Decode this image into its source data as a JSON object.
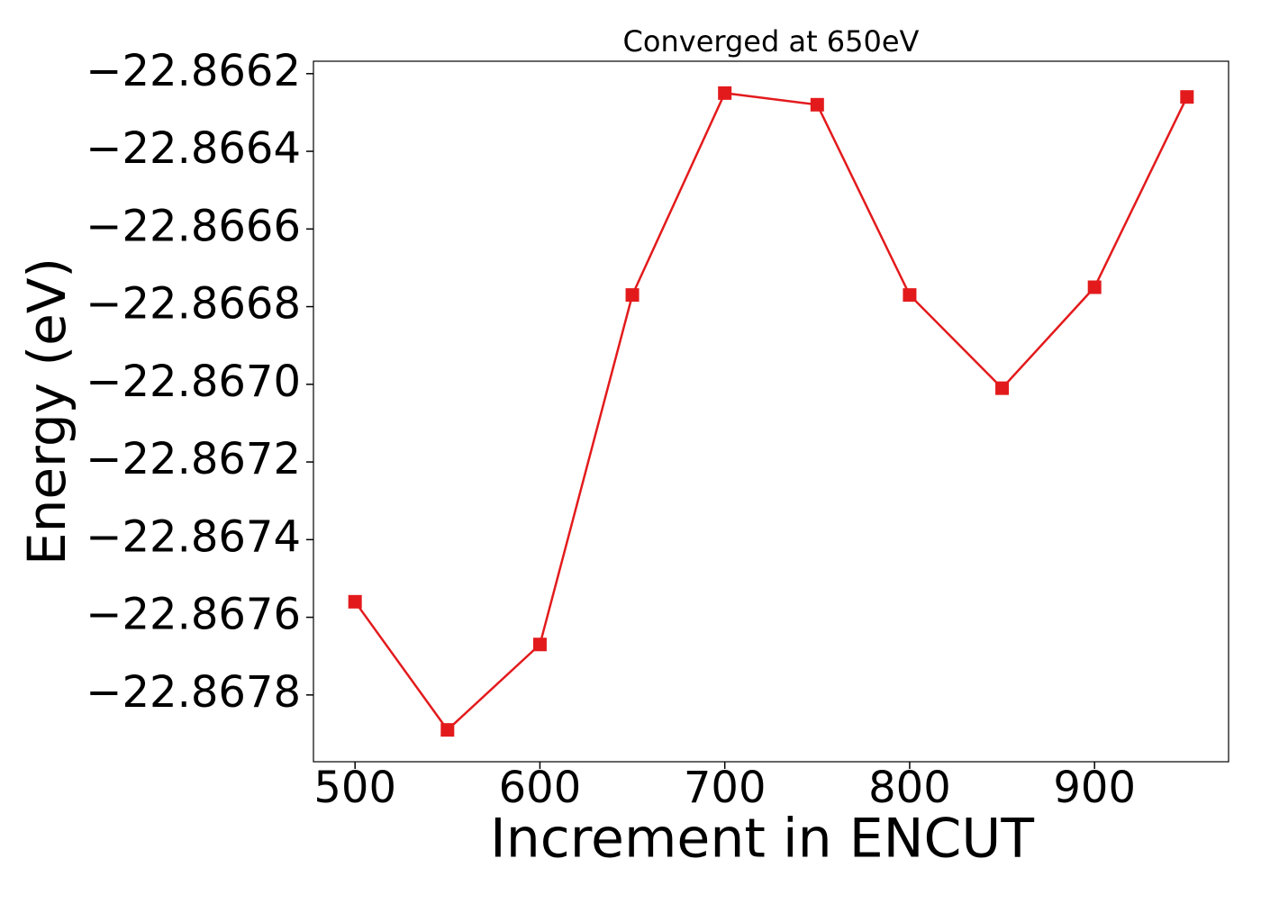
{
  "chart_data": {
    "type": "line",
    "title": "Converged at 650eV",
    "x_label": "Increment in ENCUT",
    "y_label": "Energy (eV)",
    "x": [
      500,
      550,
      600,
      650,
      700,
      750,
      800,
      850,
      900,
      950
    ],
    "series": [
      {
        "color": "#e31a1c",
        "marker": "square",
        "values": [
          -22.86756,
          -22.86789,
          -22.86767,
          -22.86677,
          -22.86625,
          -22.86628,
          -22.86677,
          -22.86701,
          -22.86675,
          -22.86626
        ]
      }
    ],
    "xlim": [
      477.5,
      972.5
    ],
    "xticks": [
      500,
      600,
      700,
      800,
      900
    ],
    "ylim": [
      -22.867972,
      -22.866168
    ],
    "yticks": [
      {
        "value": -22.8662,
        "label": "−22.8662"
      },
      {
        "value": -22.8664,
        "label": "−22.8664"
      },
      {
        "value": -22.8666,
        "label": "−22.8666"
      },
      {
        "value": -22.8668,
        "label": "−22.8668"
      },
      {
        "value": -22.867,
        "label": "−22.8670"
      },
      {
        "value": -22.8672,
        "label": "−22.8672"
      },
      {
        "value": -22.8674,
        "label": "−22.8674"
      },
      {
        "value": -22.8676,
        "label": "−22.8676"
      },
      {
        "value": -22.8678,
        "label": "−22.8678"
      }
    ],
    "grid": false
  }
}
